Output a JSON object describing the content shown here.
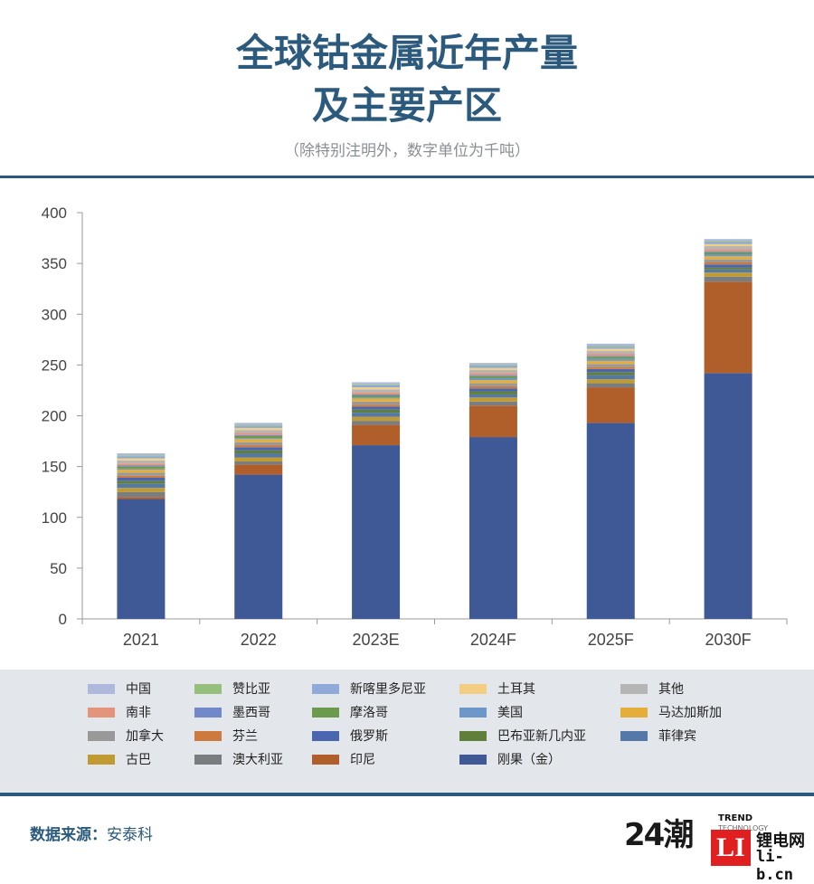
{
  "header": {
    "title_line1": "全球钴金属近年产量",
    "title_line2": "及主要产区",
    "subtitle": "（除特别注明外，数字单位为千吨）"
  },
  "chart_data": {
    "type": "bar",
    "stacked": true,
    "categories": [
      "2021",
      "2022",
      "2023E",
      "2024F",
      "2025F",
      "2030F"
    ],
    "y_ticks": [
      "0",
      "50",
      "100",
      "150",
      "200",
      "250",
      "300",
      "350",
      "400"
    ],
    "ylim": [
      0,
      400
    ],
    "grid": false,
    "series": [
      {
        "name": "刚果（金）",
        "color": "#3f5896",
        "values": [
          118,
          142,
          171,
          179,
          193,
          242
        ]
      },
      {
        "name": "印尼",
        "color": "#b05e2a",
        "values": [
          2,
          10,
          20,
          31,
          35,
          90
        ]
      },
      {
        "name": "澳大利亚",
        "color": "#7a7d80",
        "values": [
          5,
          3,
          4,
          4,
          4,
          5
        ]
      },
      {
        "name": "古巴",
        "color": "#bf9b32",
        "values": [
          4,
          4,
          4,
          4,
          4,
          4
        ]
      },
      {
        "name": "菲律宾",
        "color": "#5478a8",
        "values": [
          4,
          4,
          4,
          3,
          4,
          3
        ]
      },
      {
        "name": "巴布亚新几内亚",
        "color": "#5f7f3a",
        "values": [
          3,
          3,
          3,
          3,
          3,
          2
        ]
      },
      {
        "name": "俄罗斯",
        "color": "#4a66b0",
        "values": [
          3,
          3,
          3,
          3,
          3,
          3
        ]
      },
      {
        "name": "芬兰",
        "color": "#cc7a3e",
        "values": [
          2,
          2,
          2,
          2,
          2,
          2
        ]
      },
      {
        "name": "加拿大",
        "color": "#999999",
        "values": [
          3,
          3,
          3,
          3,
          3,
          3
        ]
      },
      {
        "name": "马达加斯加",
        "color": "#e5ad3a",
        "values": [
          3,
          3,
          3,
          3,
          3,
          3
        ]
      },
      {
        "name": "美国",
        "color": "#6d97c9",
        "values": [
          1,
          1,
          1,
          2,
          2,
          2
        ]
      },
      {
        "name": "摩洛哥",
        "color": "#6b9a4e",
        "values": [
          2,
          2,
          2,
          2,
          2,
          2
        ]
      },
      {
        "name": "墨西哥",
        "color": "#7189c9",
        "values": [
          1,
          1,
          1,
          1,
          1,
          1
        ]
      },
      {
        "name": "南非",
        "color": "#e4947a",
        "values": [
          2,
          2,
          2,
          2,
          2,
          2
        ]
      },
      {
        "name": "其他",
        "color": "#b5b5b5",
        "values": [
          3,
          3,
          3,
          3,
          3,
          3
        ]
      },
      {
        "name": "土耳其",
        "color": "#f3ce82",
        "values": [
          2,
          2,
          2,
          2,
          2,
          2
        ]
      },
      {
        "name": "新喀里多尼亚",
        "color": "#8faad8",
        "values": [
          2,
          2,
          2,
          2,
          2,
          2
        ]
      },
      {
        "name": "赞比亚",
        "color": "#96bf7e",
        "values": [
          1,
          1,
          1,
          1,
          1,
          1
        ]
      },
      {
        "name": "中国",
        "color": "#aeb8dc",
        "values": [
          2,
          2,
          2,
          2,
          2,
          2
        ]
      }
    ],
    "legend": [
      [
        "中国",
        "赞比亚",
        "新喀里多尼亚",
        "土耳其",
        "其他"
      ],
      [
        "南非",
        "墨西哥",
        "摩洛哥",
        "美国",
        "马达加斯加"
      ],
      [
        "加拿大",
        "芬兰",
        "俄罗斯",
        "巴布亚新几内亚",
        "菲律宾"
      ],
      [
        "古巴",
        "澳大利亚",
        "印尼",
        "刚果（金）"
      ]
    ],
    "legend_position": "bottom"
  },
  "footer": {
    "source_label": "数据来源：",
    "source_value": "安泰科",
    "logo_24": "24潮",
    "logo_trend": "TREND",
    "logo_technology": "TECHNOLOGY",
    "logo_li": "LI",
    "logo_site_name": "锂电网",
    "logo_site_domain": "li-b.cn"
  }
}
